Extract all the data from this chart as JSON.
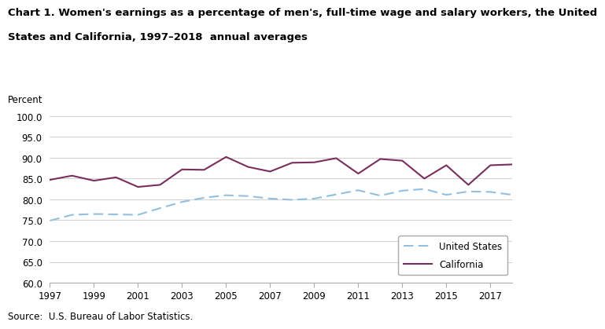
{
  "years": [
    1997,
    1998,
    1999,
    2000,
    2001,
    2002,
    2003,
    2004,
    2005,
    2006,
    2007,
    2008,
    2009,
    2010,
    2011,
    2012,
    2013,
    2014,
    2015,
    2016,
    2017,
    2018
  ],
  "us_values": [
    74.9,
    76.3,
    76.5,
    76.4,
    76.3,
    77.9,
    79.4,
    80.4,
    81.0,
    80.8,
    80.2,
    79.9,
    80.2,
    81.2,
    82.2,
    80.9,
    82.1,
    82.5,
    81.1,
    81.9,
    81.8,
    81.1
  ],
  "ca_values": [
    84.7,
    85.7,
    84.5,
    85.3,
    83.0,
    83.5,
    87.2,
    87.1,
    90.2,
    87.8,
    86.7,
    88.8,
    88.9,
    89.9,
    86.2,
    89.7,
    89.3,
    85.0,
    88.2,
    83.5,
    88.2,
    88.4
  ],
  "us_color": "#92C0E0",
  "ca_color": "#7B2D5E",
  "title_line1": "Chart 1. Women's earnings as a percentage of men's, full-time wage and salary workers, the United",
  "title_line2": "States and California, 1997–2018  annual averages",
  "ylabel": "Percent",
  "ylim": [
    60.0,
    100.0
  ],
  "yticks": [
    60.0,
    65.0,
    70.0,
    75.0,
    80.0,
    85.0,
    90.0,
    95.0,
    100.0
  ],
  "xticks": [
    1997,
    1999,
    2001,
    2003,
    2005,
    2007,
    2009,
    2011,
    2013,
    2015,
    2017
  ],
  "source": "Source:  U.S. Bureau of Labor Statistics.",
  "legend_us": "United States",
  "legend_ca": "California",
  "background_color": "#ffffff",
  "grid_color": "#d0d0d0",
  "title_fontsize": 9.5,
  "axis_fontsize": 8.5,
  "source_fontsize": 8.5
}
